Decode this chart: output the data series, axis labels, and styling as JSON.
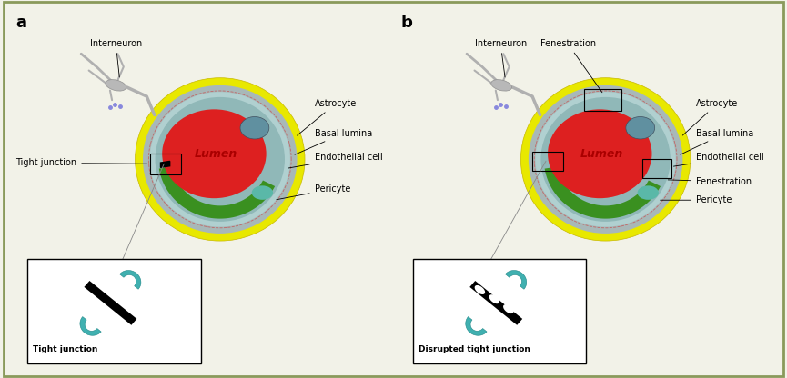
{
  "bg_color": "#f2f2e8",
  "border_color": "#8a9a5b",
  "panel_a_label": "a",
  "panel_b_label": "b",
  "astrocyte_color": "#c07090",
  "yellow_outer_color": "#e8e800",
  "yellow_inner_color": "#e8e800",
  "basal_lamina_color": "#a8b8b8",
  "endothelial_color": "#88c8c8",
  "lumen_color": "#dd2020",
  "lumen_label": "Lumen",
  "pericyte_color": "#3a9020",
  "pericyte_nucleus_color": "#5ab8a8",
  "tight_junction_teal": "#40b0b0",
  "tight_junction_black": "#111111"
}
